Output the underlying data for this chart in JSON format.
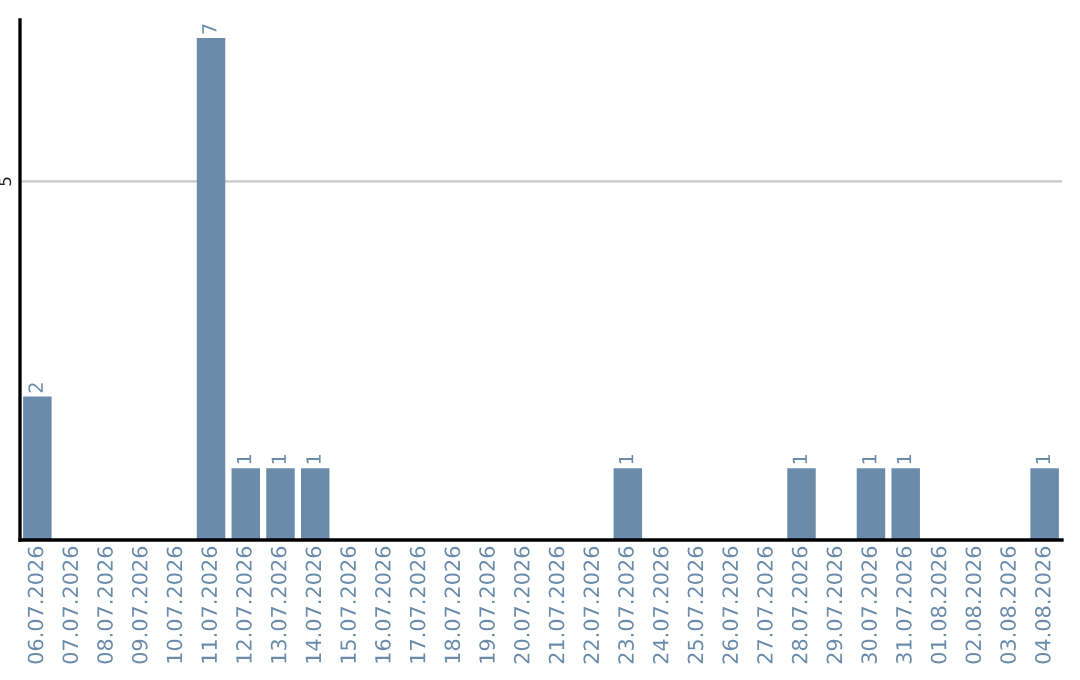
{
  "chart_data": {
    "type": "bar",
    "categories": [
      "06.07.2026",
      "07.07.2026",
      "08.07.2026",
      "09.07.2026",
      "10.07.2026",
      "11.07.2026",
      "12.07.2026",
      "13.07.2026",
      "14.07.2026",
      "15.07.2026",
      "16.07.2026",
      "17.07.2026",
      "18.07.2026",
      "19.07.2026",
      "20.07.2026",
      "21.07.2026",
      "22.07.2026",
      "23.07.2026",
      "24.07.2026",
      "25.07.2026",
      "26.07.2026",
      "27.07.2026",
      "28.07.2026",
      "29.07.2026",
      "30.07.2026",
      "31.07.2026",
      "01.08.2026",
      "02.08.2026",
      "03.08.2026",
      "04.08.2026"
    ],
    "values": [
      2,
      0,
      0,
      0,
      0,
      7,
      1,
      1,
      1,
      0,
      0,
      0,
      0,
      0,
      0,
      0,
      0,
      1,
      0,
      0,
      0,
      0,
      1,
      0,
      1,
      1,
      0,
      0,
      0,
      1
    ],
    "value_labels": [
      "2",
      null,
      null,
      null,
      null,
      "7",
      "1",
      "1",
      "1",
      null,
      null,
      null,
      null,
      null,
      null,
      null,
      null,
      "1",
      null,
      null,
      null,
      null,
      "1",
      null,
      "1",
      "1",
      null,
      null,
      null,
      "1"
    ],
    "color": "#6a8caa",
    "ylim": [
      0,
      7.25
    ],
    "yticks": [
      5
    ],
    "grid": "y"
  }
}
